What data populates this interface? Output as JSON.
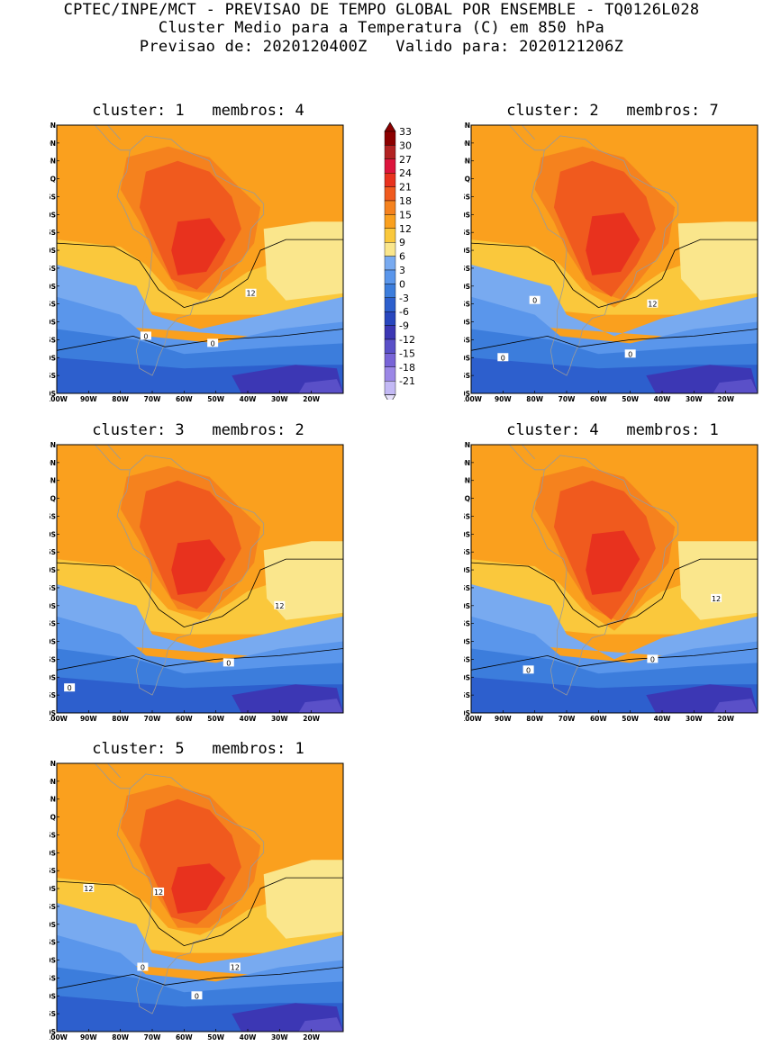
{
  "header": {
    "line1": "CPTEC/INPE/MCT - PREVISAO DE TEMPO GLOBAL POR ENSEMBLE - TQ0126L028",
    "line2": "Cluster Medio para a Temperatura (C) em 850 hPa",
    "line3": "Previsao de: 2020120400Z   Valido para: 2020121206Z"
  },
  "axes": {
    "lat_labels": [
      "15N",
      "10N",
      "5N",
      "EQ",
      "5S",
      "10S",
      "15S",
      "20S",
      "25S",
      "30S",
      "35S",
      "40S",
      "45S",
      "50S",
      "55S",
      "60S"
    ],
    "lon_labels": [
      "100W",
      "90W",
      "80W",
      "70W",
      "60W",
      "50W",
      "40W",
      "30W",
      "20W"
    ]
  },
  "colorbar": {
    "labels": [
      "33",
      "30",
      "27",
      "24",
      "21",
      "18",
      "15",
      "12",
      "9",
      "6",
      "3",
      "0",
      "-3",
      "-6",
      "-9",
      "-12",
      "-15",
      "-18",
      "-21"
    ],
    "colors": [
      "#8b0000",
      "#b22222",
      "#dc143c",
      "#e8321e",
      "#f05a1e",
      "#f5821e",
      "#faa01e",
      "#fac83c",
      "#fae68c",
      "#78aaf0",
      "#5a96eb",
      "#3c7ddc",
      "#2d5fcd",
      "#2846be",
      "#3c37b4",
      "#5a50c8",
      "#7864d7",
      "#9b87e6",
      "#c3b9f5"
    ]
  },
  "panels": [
    {
      "title": "cluster: 1   membros: 4",
      "contour_labels": [
        "12",
        "0",
        "0"
      ]
    },
    {
      "title": "cluster: 2   membros: 7",
      "contour_labels": [
        "12",
        "0",
        "0",
        "0"
      ]
    },
    {
      "title": "cluster: 3   membros: 2",
      "contour_labels": [
        "12",
        "0",
        "0"
      ]
    },
    {
      "title": "cluster: 4   membros: 1",
      "contour_labels": [
        "12",
        "0",
        "0"
      ]
    },
    {
      "title": "cluster: 5   membros: 1",
      "contour_labels": [
        "12",
        "12",
        "12",
        "0",
        "0"
      ]
    }
  ]
}
